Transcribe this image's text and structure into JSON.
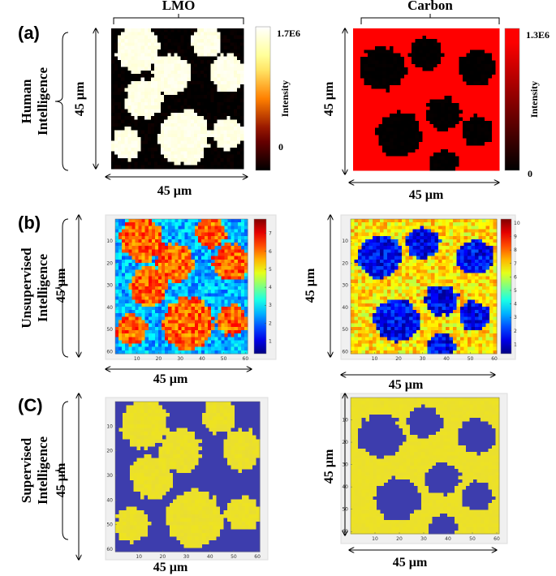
{
  "rows": [
    {
      "label": "(a)",
      "title": [
        "Human",
        "Intelligence"
      ],
      "panels": [
        {
          "header": "LMO",
          "width": "45 µm",
          "height": "45 µm",
          "colorbar": {
            "max": "1.7E6",
            "min": 0,
            "label": "Intensity"
          }
        },
        {
          "header": "Carbon",
          "width": "45 µm",
          "height": "45 µm",
          "colorbar": {
            "max": "1.3E6",
            "min": 0,
            "label": "Intensity"
          }
        }
      ]
    },
    {
      "label": "(b)",
      "title": [
        "Unsupervised",
        "Intelligence"
      ],
      "panels": [
        {
          "width": "45 µm",
          "height": "45 µm",
          "xlim": [
            0,
            61
          ],
          "ylim": [
            0,
            61
          ],
          "xticks": [
            10,
            20,
            30,
            40,
            50,
            60
          ],
          "yticks": [
            10,
            20,
            30,
            40,
            50,
            60
          ],
          "colorbar": {
            "clim": [
              0.3,
              7.8
            ],
            "ticks": [
              1,
              2,
              3,
              4,
              5,
              6,
              7
            ]
          }
        },
        {
          "width": "45 µm",
          "height": "45 µm",
          "xlim": [
            0,
            61
          ],
          "ylim": [
            0,
            61
          ],
          "xticks": [
            10,
            20,
            30,
            40,
            50,
            60
          ],
          "yticks": [
            10,
            20,
            30,
            40,
            50,
            60
          ],
          "colorbar": {
            "clim": [
              0.3,
              10.3
            ],
            "ticks": [
              1,
              2,
              3,
              4,
              5,
              6,
              7,
              8,
              9,
              10
            ]
          }
        }
      ]
    },
    {
      "label": "(C)",
      "title": [
        "Supervised",
        "Intelligence"
      ],
      "panels": [
        {
          "width": "45 µm",
          "height": "45 µm",
          "xlim": [
            0,
            61
          ],
          "ylim": [
            0,
            61
          ],
          "xticks": [
            10,
            20,
            30,
            40,
            50,
            60
          ],
          "yticks": [
            10,
            20,
            30,
            40,
            50,
            60
          ]
        },
        {
          "width": "45 µm",
          "height": "45 µm",
          "xlim": [
            0,
            61
          ],
          "ylim": [
            0,
            61
          ],
          "xticks": [
            10,
            20,
            30,
            40,
            50,
            60
          ],
          "yticks": [
            10,
            20,
            30,
            40,
            50,
            60
          ]
        }
      ]
    }
  ]
}
